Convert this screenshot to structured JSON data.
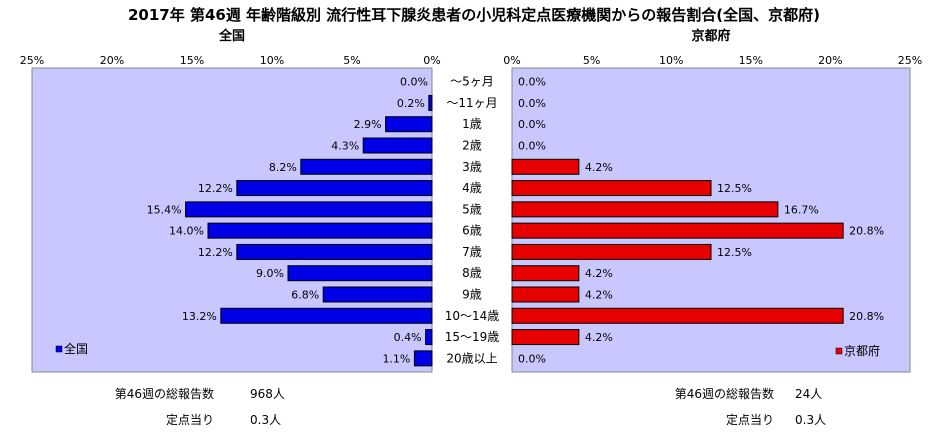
{
  "title": "2017年 第46週 年齢階級別 流行性耳下腺炎患者の小児科定点医療機関からの報告割合(全国、京都府)",
  "colors": {
    "background": "#ffffff",
    "plot_background": "#c8c8ff",
    "national_bar": "#0000e6",
    "kyoto_bar": "#e60000",
    "border": "#000000"
  },
  "chart_data": [
    {
      "type": "bar",
      "orientation": "horizontal",
      "direction": "leftward",
      "panel_title": "全国",
      "legend": "全国",
      "legend_position": "bottom-left",
      "categories": [
        "～5ヶ月",
        "～11ヶ月",
        "1歳",
        "2歳",
        "3歳",
        "4歳",
        "5歳",
        "6歳",
        "7歳",
        "8歳",
        "9歳",
        "10～14歳",
        "15～19歳",
        "20歳以上"
      ],
      "series": [
        {
          "name": "全国",
          "values": [
            0.0,
            0.2,
            2.9,
            4.3,
            8.2,
            12.2,
            15.4,
            14.0,
            12.2,
            9.0,
            6.8,
            13.2,
            0.4,
            1.1
          ],
          "labels": [
            "0.0%",
            "0.2%",
            "2.9%",
            "4.3%",
            "8.2%",
            "12.2%",
            "15.4%",
            "14.0%",
            "12.2%",
            "9.0%",
            "6.8%",
            "13.2%",
            "0.4%",
            "1.1%"
          ]
        }
      ],
      "xlim": [
        0,
        25
      ],
      "ticks": [
        25,
        20,
        15,
        10,
        5,
        0
      ],
      "tick_labels": [
        "25%",
        "20%",
        "15%",
        "10%",
        "5%",
        "0%"
      ],
      "grid": false,
      "summary": {
        "total_label": "第46週の総報告数",
        "total_value": "968人",
        "per_site_label": "定点当り",
        "per_site_value": "0.3人"
      }
    },
    {
      "type": "bar",
      "orientation": "horizontal",
      "direction": "rightward",
      "panel_title": "京都府",
      "legend": "京都府",
      "legend_position": "bottom-right",
      "categories": [
        "～5ヶ月",
        "～11ヶ月",
        "1歳",
        "2歳",
        "3歳",
        "4歳",
        "5歳",
        "6歳",
        "7歳",
        "8歳",
        "9歳",
        "10～14歳",
        "15～19歳",
        "20歳以上"
      ],
      "series": [
        {
          "name": "京都府",
          "values": [
            0.0,
            0.0,
            0.0,
            0.0,
            4.2,
            12.5,
            16.7,
            20.8,
            12.5,
            4.2,
            4.2,
            20.8,
            4.2,
            0.0
          ],
          "labels": [
            "0.0%",
            "0.0%",
            "0.0%",
            "0.0%",
            "4.2%",
            "12.5%",
            "16.7%",
            "20.8%",
            "12.5%",
            "4.2%",
            "4.2%",
            "20.8%",
            "4.2%",
            "0.0%"
          ]
        }
      ],
      "xlim": [
        0,
        25
      ],
      "ticks": [
        0,
        5,
        10,
        15,
        20,
        25
      ],
      "tick_labels": [
        "0%",
        "5%",
        "10%",
        "15%",
        "20%",
        "25%"
      ],
      "grid": false,
      "summary": {
        "total_label": "第46週の総報告数",
        "total_value": "24人",
        "per_site_label": "定点当り",
        "per_site_value": "0.3人"
      }
    }
  ]
}
